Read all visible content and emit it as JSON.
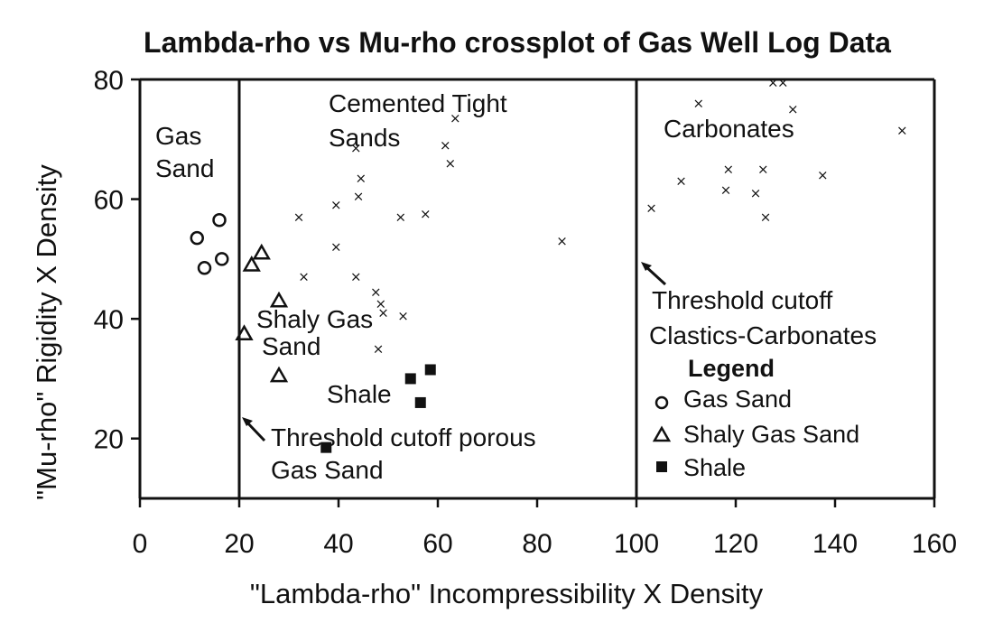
{
  "chart_data": {
    "type": "scatter",
    "title": "Lambda-rho vs Mu-rho crossplot of Gas Well Log Data",
    "xlabel": "\"Lambda-rho\" Incompressibility X Density",
    "ylabel": "\"Mu-rho\" Rigidity X Density",
    "xlim": [
      0,
      160
    ],
    "ylim": [
      10,
      80
    ],
    "x_ticks": [
      "0",
      "20",
      "40",
      "60",
      "80",
      "100",
      "120",
      "140",
      "160"
    ],
    "y_ticks": [
      "20",
      "40",
      "60",
      "80"
    ],
    "grid": false,
    "cutoff_lines": [
      20,
      100
    ],
    "region_labels": {
      "gas_sand": [
        "Gas",
        "Sand"
      ],
      "cemented": [
        "Cemented Tight",
        "Sands"
      ],
      "carbonates": "Carbonates",
      "shaly": [
        "Shaly Gas",
        "Sand"
      ],
      "shale": "Shale",
      "threshold_porous": [
        "Threshold cutoff porous",
        "Gas Sand"
      ],
      "threshold_clastics": [
        "Threshold cutoff",
        "Clastics-Carbonates"
      ]
    },
    "legend": {
      "title": "Legend",
      "placement": "right",
      "entries": [
        {
          "symbol": "circle",
          "label": "Gas Sand"
        },
        {
          "symbol": "triangle",
          "label": "Shaly Gas Sand"
        },
        {
          "symbol": "square",
          "label": "Shale"
        }
      ]
    },
    "series": [
      {
        "name": "Gas Sand",
        "marker": "circle",
        "points": [
          [
            11.5,
            53.5
          ],
          [
            13,
            48.5
          ],
          [
            16,
            56.5
          ],
          [
            16.5,
            50
          ]
        ]
      },
      {
        "name": "Shaly Gas Sand",
        "marker": "triangle",
        "points": [
          [
            22.5,
            49
          ],
          [
            24.5,
            51
          ],
          [
            28,
            43
          ],
          [
            21,
            37.5
          ],
          [
            28,
            30.5
          ]
        ]
      },
      {
        "name": "Shale",
        "marker": "square",
        "points": [
          [
            54.5,
            30
          ],
          [
            58.5,
            31.5
          ],
          [
            56.5,
            26
          ],
          [
            37.5,
            18.5
          ]
        ]
      },
      {
        "marker": "x",
        "points": [
          [
            32,
            57
          ],
          [
            39.5,
            59
          ],
          [
            44,
            60.5
          ],
          [
            44.5,
            63.5
          ],
          [
            43.5,
            68.5
          ],
          [
            39.5,
            52
          ],
          [
            33,
            47
          ],
          [
            43.5,
            47
          ],
          [
            47.5,
            44.5
          ],
          [
            48.5,
            42.5
          ],
          [
            49,
            41
          ],
          [
            53,
            40.5
          ],
          [
            48,
            35
          ],
          [
            52.5,
            57
          ],
          [
            57.5,
            57.5
          ],
          [
            61.5,
            69
          ],
          [
            62.5,
            66
          ],
          [
            63.5,
            73.5
          ],
          [
            85,
            53
          ],
          [
            103,
            58.5
          ],
          [
            109,
            63
          ],
          [
            112.5,
            76
          ],
          [
            118,
            61.5
          ],
          [
            118.5,
            65
          ],
          [
            124,
            61
          ],
          [
            125.5,
            65
          ],
          [
            126,
            57
          ],
          [
            127.5,
            79.5
          ],
          [
            129.5,
            79.5
          ],
          [
            131.5,
            75
          ],
          [
            137.5,
            64
          ],
          [
            153.5,
            71.5
          ]
        ]
      }
    ]
  }
}
